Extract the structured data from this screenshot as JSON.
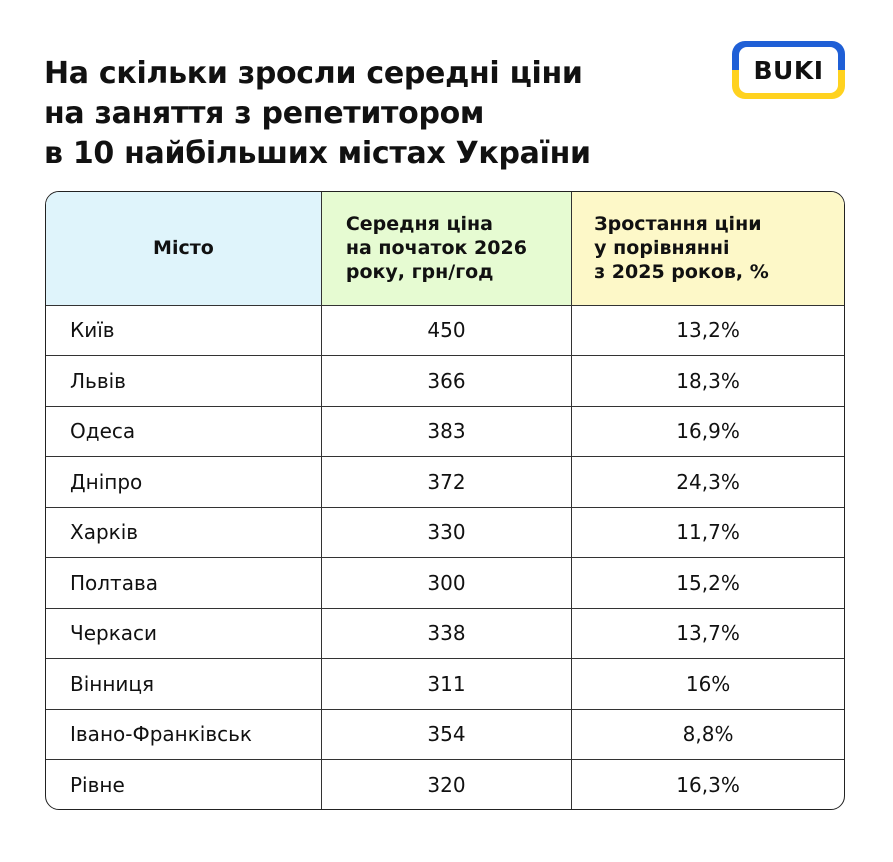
{
  "title_lines": [
    "На скільки зросли середні ціни",
    "на заняття з репетитором",
    "в 10 найбільших містах України"
  ],
  "logo": {
    "text": "BUKI",
    "colors": {
      "top": "#1f5fd6",
      "bottom": "#ffd21f"
    }
  },
  "chart_data": {
    "type": "table",
    "columns": [
      {
        "lines": [
          "Місто"
        ]
      },
      {
        "lines": [
          "Середня ціна",
          "на початок 2026",
          "року, грн/год"
        ]
      },
      {
        "lines": [
          "Зростання ціни",
          "у порівнянні",
          "з 2025 роков, %"
        ]
      }
    ],
    "header_colors": [
      "#dff4fb",
      "#e6fbd2",
      "#fdf8c8"
    ],
    "rows": [
      [
        "Київ",
        "450",
        "13,2%"
      ],
      [
        "Львів",
        "366",
        "18,3%"
      ],
      [
        "Одеса",
        "383",
        "16,9%"
      ],
      [
        "Дніпро",
        "372",
        "24,3%"
      ],
      [
        "Харків",
        "330",
        "11,7%"
      ],
      [
        "Полтава",
        "300",
        "15,2%"
      ],
      [
        "Черкаси",
        "338",
        "13,7%"
      ],
      [
        "Вінниця",
        "311",
        "16%"
      ],
      [
        "Івано-Франківськ",
        "354",
        "8,8%"
      ],
      [
        "Рівне",
        "320",
        "16,3%"
      ]
    ]
  }
}
